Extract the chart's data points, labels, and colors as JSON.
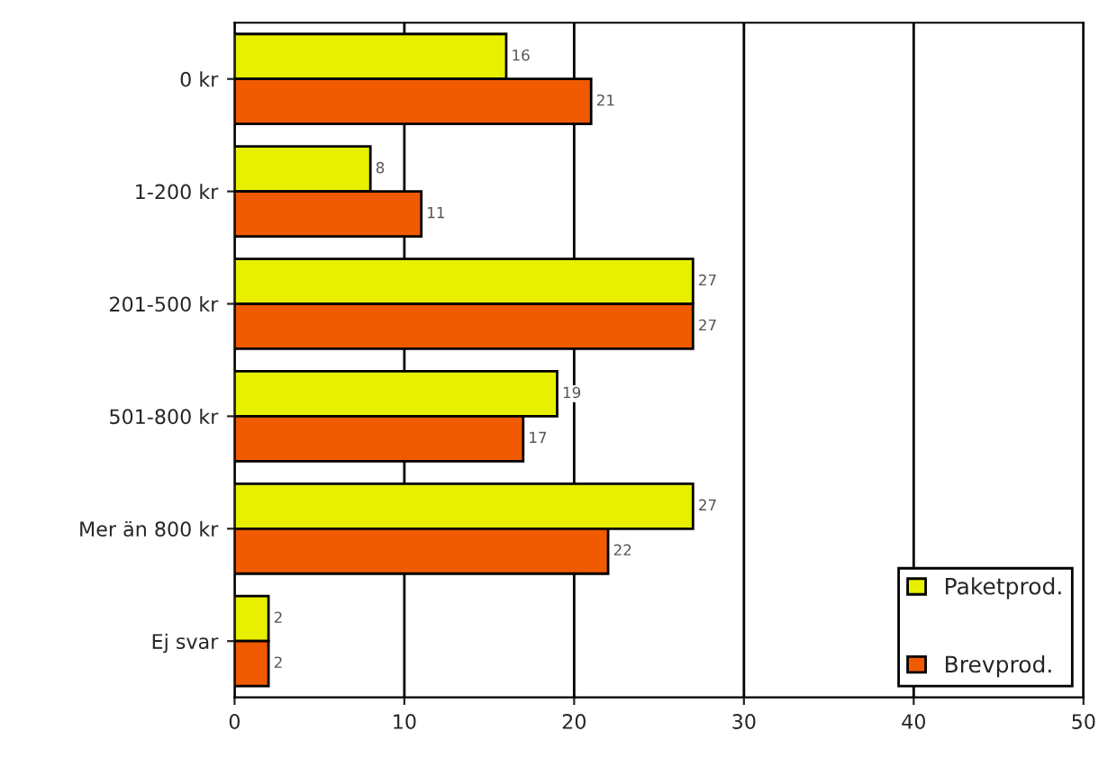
{
  "chart_data": {
    "type": "bar",
    "orientation": "horizontal",
    "categories": [
      "0 kr",
      "1-200 kr",
      "201-500 kr",
      "501-800 kr",
      "Mer än 800 kr",
      "Ej svar"
    ],
    "series": [
      {
        "name": "Paketprod.",
        "color": "#e8f000",
        "values": [
          16,
          8,
          27,
          19,
          27,
          2
        ]
      },
      {
        "name": "Brevprod.",
        "color": "#f05a00",
        "values": [
          21,
          11,
          27,
          17,
          22,
          2
        ]
      }
    ],
    "xlim": [
      0,
      50
    ],
    "xticks": [
      0,
      10,
      20,
      30,
      40,
      50
    ],
    "grid": "x",
    "legend": "bottom right",
    "data_labels": true
  }
}
